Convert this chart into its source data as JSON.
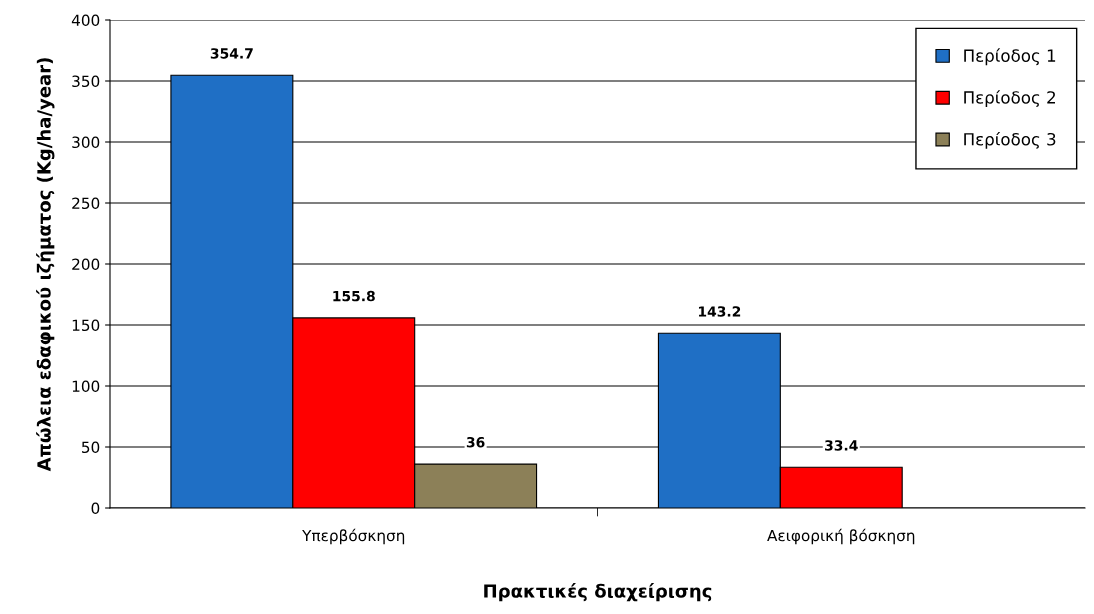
{
  "chart_data": {
    "type": "bar",
    "xlabel": "Πρακτικές διαχείρισης",
    "ylabel": "Απώλεια εδαφικού ιζήματος (Kg/ha/year)",
    "categories": [
      "Υπερβόσκηση",
      "Αειφορική βόσκηση"
    ],
    "series": [
      {
        "name": "Περίοδος 1",
        "color": "#1f6fc5",
        "values": [
          354.7,
          143.2
        ]
      },
      {
        "name": "Περίοδος 2",
        "color": "#ff0000",
        "values": [
          155.8,
          33.4
        ]
      },
      {
        "name": "Περίοδος 3",
        "color": "#8c8058",
        "values": [
          36,
          null
        ]
      }
    ],
    "ylim": [
      0,
      400
    ],
    "yticks": [
      0,
      50,
      100,
      150,
      200,
      250,
      300,
      350,
      400
    ],
    "grid": "y",
    "legend": "top right",
    "data_labels": true
  }
}
